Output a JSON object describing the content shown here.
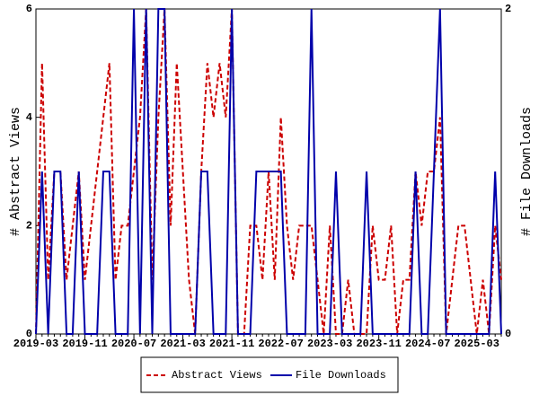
{
  "chart_data": {
    "type": "line",
    "y_label": "# Abstract Views",
    "y2_label": "# File Downloads",
    "categories": [
      "2019-03",
      null,
      null,
      null,
      null,
      null,
      null,
      null,
      "2019-11",
      null,
      null,
      null,
      null,
      null,
      null,
      null,
      "2020-07",
      null,
      null,
      null,
      null,
      null,
      null,
      null,
      "2021-03",
      null,
      null,
      null,
      null,
      null,
      null,
      null,
      "2021-11",
      null,
      null,
      null,
      null,
      null,
      null,
      null,
      "2022-07",
      null,
      null,
      null,
      null,
      null,
      null,
      null,
      "2023-03",
      null,
      null,
      null,
      null,
      null,
      null,
      null,
      "2023-11",
      null,
      null,
      null,
      null,
      null,
      null,
      null,
      "2024-07",
      null,
      null,
      null,
      null,
      null,
      null,
      null,
      "2025-03",
      null,
      null,
      null,
      null
    ],
    "series": [
      {
        "name": "Abstract Views",
        "color": "#cc0000",
        "dash": true,
        "axis": "y",
        "values": [
          0,
          5,
          1,
          3,
          3,
          1,
          2,
          3,
          1,
          2,
          3,
          4,
          5,
          1,
          2,
          2,
          3,
          4,
          6,
          1,
          4,
          6,
          2,
          5,
          3,
          1,
          0,
          3,
          5,
          4,
          5,
          4,
          6,
          0,
          0,
          2,
          2,
          1,
          3,
          1,
          4,
          2,
          1,
          2,
          2,
          2,
          1,
          0,
          2,
          0,
          0,
          1,
          0,
          0,
          0,
          2,
          1,
          1,
          2,
          0,
          1,
          1,
          3,
          2,
          3,
          3,
          4,
          0,
          1,
          2,
          2,
          1,
          0,
          1,
          0,
          2,
          1
        ]
      },
      {
        "name": "File Downloads",
        "color": "#0000aa",
        "dash": false,
        "axis": "y2",
        "values": [
          0,
          1,
          0,
          1,
          1,
          0,
          0,
          1,
          0,
          0,
          0,
          1,
          1,
          0,
          0,
          0,
          2,
          0,
          2,
          0,
          2,
          2,
          0,
          0,
          0,
          0,
          0,
          1,
          1,
          0,
          0,
          0,
          2,
          0,
          0,
          0,
          1,
          1,
          1,
          1,
          1,
          0,
          0,
          0,
          0,
          2,
          0,
          0,
          0,
          1,
          0,
          0,
          0,
          0,
          1,
          0,
          0,
          0,
          0,
          0,
          0,
          0,
          1,
          0,
          0,
          1,
          2,
          0,
          0,
          0,
          0,
          0,
          0,
          0,
          0,
          1,
          0
        ]
      }
    ],
    "ylim": [
      0,
      6
    ],
    "yticks": [
      0,
      2,
      4,
      6
    ],
    "y2lim": [
      0,
      2
    ],
    "y2ticks": [
      0,
      2
    ],
    "legend": "bottom"
  }
}
